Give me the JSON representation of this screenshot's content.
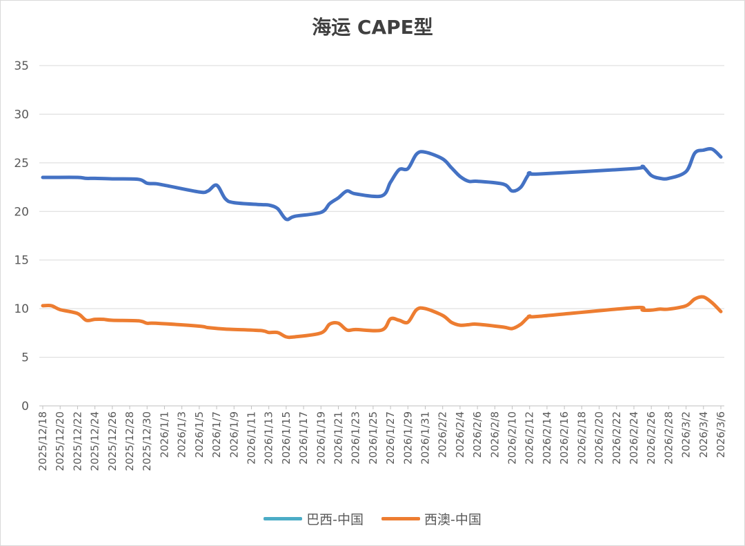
{
  "chart_data": {
    "type": "line",
    "title": "海运 CAPE型",
    "xlabel": "",
    "ylabel": "",
    "ylim": [
      0,
      35
    ],
    "yticks": [
      "0",
      "5",
      "10",
      "15",
      "20",
      "25",
      "30",
      "35"
    ],
    "grid": true,
    "legend_position": "bottom",
    "x_tick_labels": [
      "2025/12/18",
      "2025/12/20",
      "2025/12/22",
      "2025/12/24",
      "2025/12/26",
      "2025/12/28",
      "2025/12/30",
      "2026/1/1",
      "2026/1/3",
      "2026/1/5",
      "2026/1/7",
      "2026/1/9",
      "2026/1/11",
      "2026/1/13",
      "2026/1/15",
      "2026/1/17",
      "2026/1/19",
      "2026/1/21",
      "2026/1/23",
      "2026/1/25",
      "2026/1/27",
      "2026/1/29",
      "2026/1/31",
      "2026/2/2",
      "2026/2/4",
      "2026/2/6",
      "2026/2/8",
      "2026/2/10",
      "2026/2/12",
      "2026/2/14",
      "2026/2/16",
      "2026/2/18",
      "2026/2/20",
      "2026/2/22",
      "2026/2/24",
      "2026/2/26",
      "2026/2/28",
      "2026/3/2",
      "2026/3/4",
      "2026/3/6"
    ],
    "series": [
      {
        "name": "巴西-中国",
        "color": "#4472C4",
        "legend_color": "#4BACC6",
        "points": [
          [
            "2025/12/18",
            23.5
          ],
          [
            "2025/12/19",
            23.5
          ],
          [
            "2025/12/22",
            23.5
          ],
          [
            "2025/12/23",
            23.4
          ],
          [
            "2025/12/24",
            23.4
          ],
          [
            "2025/12/26",
            23.35
          ],
          [
            "2025/12/29",
            23.3
          ],
          [
            "2025/12/30",
            22.9
          ],
          [
            "2025/12/31",
            22.85
          ],
          [
            "2026/1/1",
            22.7
          ],
          [
            "2026/1/5",
            22.0
          ],
          [
            "2026/1/6",
            22.1
          ],
          [
            "2026/1/7",
            22.7
          ],
          [
            "2026/1/8",
            21.3
          ],
          [
            "2026/1/9",
            20.9
          ],
          [
            "2026/1/12",
            20.7
          ],
          [
            "2026/1/13",
            20.65
          ],
          [
            "2026/1/14",
            20.3
          ],
          [
            "2026/1/15",
            19.2
          ],
          [
            "2026/1/16",
            19.5
          ],
          [
            "2026/1/19",
            19.9
          ],
          [
            "2026/1/20",
            20.8
          ],
          [
            "2026/1/21",
            21.4
          ],
          [
            "2026/1/22",
            22.1
          ],
          [
            "2026/1/23",
            21.8
          ],
          [
            "2026/1/26",
            21.6
          ],
          [
            "2026/1/27",
            23.0
          ],
          [
            "2026/1/28",
            24.3
          ],
          [
            "2026/1/29",
            24.4
          ],
          [
            "2026/1/30",
            25.9
          ],
          [
            "2026/1/31",
            26.1
          ],
          [
            "2026/2/2",
            25.4
          ],
          [
            "2026/2/3",
            24.5
          ],
          [
            "2026/2/4",
            23.6
          ],
          [
            "2026/2/5",
            23.1
          ],
          [
            "2026/2/6",
            23.1
          ],
          [
            "2026/2/9",
            22.8
          ],
          [
            "2026/2/10",
            22.1
          ],
          [
            "2026/2/11",
            22.5
          ],
          [
            "2026/2/12",
            23.9
          ],
          [
            "2026/2/13",
            23.85
          ],
          [
            "2026/2/24",
            24.4
          ],
          [
            "2026/2/25",
            24.6
          ],
          [
            "2026/2/26",
            23.7
          ],
          [
            "2026/2/27",
            23.4
          ],
          [
            "2026/2/28",
            23.4
          ],
          [
            "2026/3/2",
            24.1
          ],
          [
            "2026/3/3",
            26.0
          ],
          [
            "2026/3/4",
            26.3
          ],
          [
            "2026/3/5",
            26.4
          ],
          [
            "2026/3/6",
            25.6
          ]
        ]
      },
      {
        "name": "西澳-中国",
        "color": "#ED7D31",
        "legend_color": "#ED7D31",
        "points": [
          [
            "2025/12/18",
            10.3
          ],
          [
            "2025/12/19",
            10.3
          ],
          [
            "2025/12/20",
            9.9
          ],
          [
            "2025/12/22",
            9.5
          ],
          [
            "2025/12/23",
            8.8
          ],
          [
            "2025/12/24",
            8.9
          ],
          [
            "2025/12/25",
            8.9
          ],
          [
            "2025/12/26",
            8.8
          ],
          [
            "2025/12/29",
            8.75
          ],
          [
            "2025/12/30",
            8.5
          ],
          [
            "2025/12/31",
            8.5
          ],
          [
            "2026/1/5",
            8.2
          ],
          [
            "2026/1/6",
            8.05
          ],
          [
            "2026/1/8",
            7.9
          ],
          [
            "2026/1/12",
            7.75
          ],
          [
            "2026/1/13",
            7.55
          ],
          [
            "2026/1/14",
            7.55
          ],
          [
            "2026/1/15",
            7.1
          ],
          [
            "2026/1/16",
            7.1
          ],
          [
            "2026/1/19",
            7.5
          ],
          [
            "2026/1/20",
            8.4
          ],
          [
            "2026/1/21",
            8.5
          ],
          [
            "2026/1/22",
            7.8
          ],
          [
            "2026/1/23",
            7.85
          ],
          [
            "2026/1/26",
            7.8
          ],
          [
            "2026/1/27",
            8.95
          ],
          [
            "2026/1/28",
            8.8
          ],
          [
            "2026/1/29",
            8.6
          ],
          [
            "2026/1/30",
            9.9
          ],
          [
            "2026/1/31",
            10.0
          ],
          [
            "2026/2/2",
            9.3
          ],
          [
            "2026/2/3",
            8.6
          ],
          [
            "2026/2/4",
            8.3
          ],
          [
            "2026/2/5",
            8.35
          ],
          [
            "2026/2/6",
            8.4
          ],
          [
            "2026/2/9",
            8.1
          ],
          [
            "2026/2/10",
            7.95
          ],
          [
            "2026/2/11",
            8.4
          ],
          [
            "2026/2/12",
            9.2
          ],
          [
            "2026/2/13",
            9.2
          ],
          [
            "2026/2/24",
            10.1
          ],
          [
            "2026/2/25",
            9.85
          ],
          [
            "2026/2/26",
            9.85
          ],
          [
            "2026/2/27",
            9.95
          ],
          [
            "2026/2/28",
            9.95
          ],
          [
            "2026/3/2",
            10.3
          ],
          [
            "2026/3/3",
            11.0
          ],
          [
            "2026/3/4",
            11.2
          ],
          [
            "2026/3/5",
            10.6
          ],
          [
            "2026/3/6",
            9.7
          ]
        ]
      }
    ]
  }
}
